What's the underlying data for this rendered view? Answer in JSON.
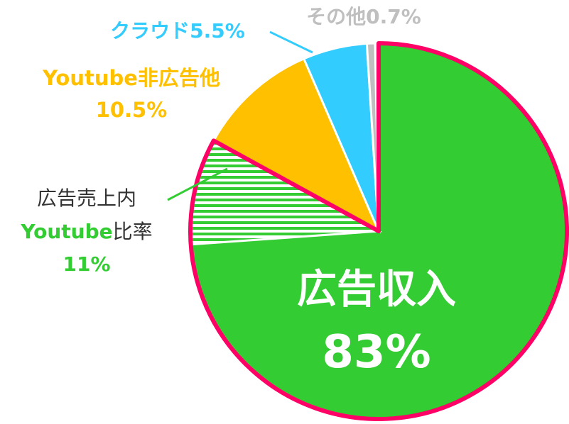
{
  "chart_data": {
    "type": "pie",
    "categories": [
      "広告収入",
      "Youtube非広告他",
      "クラウド",
      "その他"
    ],
    "values": [
      83,
      10.5,
      5.5,
      0.7
    ],
    "value_labels": [
      "83%",
      "10.5%",
      "5.5%",
      "0.7%"
    ],
    "colors": [
      "#33cc33",
      "#ffc000",
      "#33ccff",
      "#bfbfbf"
    ],
    "label_colors": [
      "#ffffff",
      "#ffc000",
      "#33ccff",
      "#bfbfbf"
    ],
    "outline_color": "#ff0066",
    "annotation": {
      "text": [
        "広告売上内",
        "Youtube",
        "比率"
      ],
      "share": 11,
      "share_label": "11%",
      "color": "#33cc33"
    }
  }
}
